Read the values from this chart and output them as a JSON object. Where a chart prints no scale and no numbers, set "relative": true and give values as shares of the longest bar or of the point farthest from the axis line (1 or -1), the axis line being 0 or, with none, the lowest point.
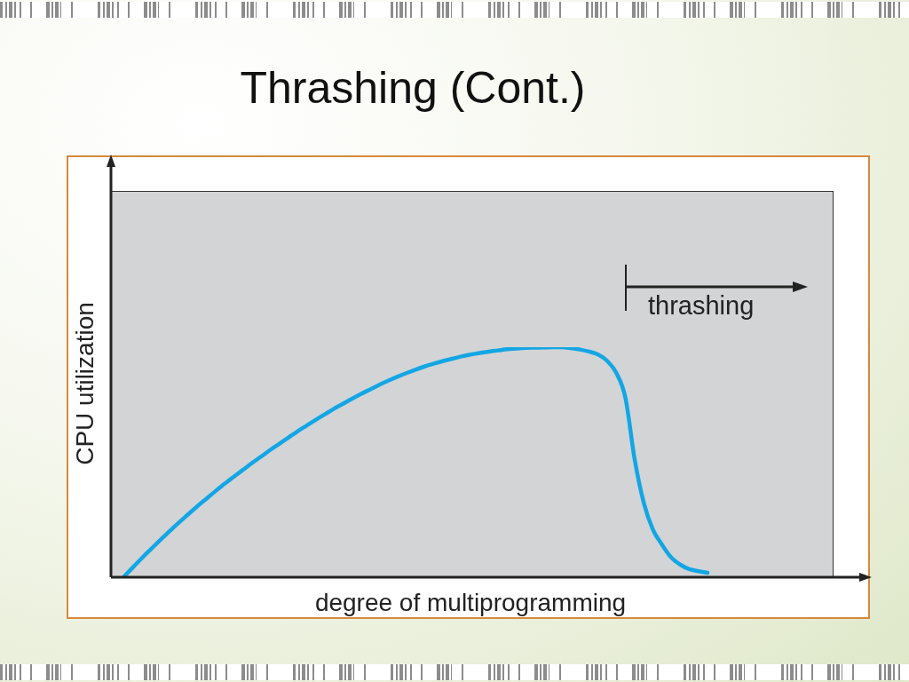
{
  "chart_data": {
    "type": "line",
    "title": "Thrashing (Cont.)",
    "xlabel": "degree of multiprogramming",
    "ylabel": "CPU utilization",
    "annotations": [
      "thrashing"
    ],
    "relative": true,
    "categories": [
      null,
      null,
      null,
      null,
      null,
      null,
      null,
      null,
      null,
      null,
      null,
      null,
      null,
      null,
      null,
      null,
      null,
      null,
      null,
      null,
      null,
      null,
      null,
      null,
      null,
      null,
      null,
      null,
      null,
      null,
      null,
      null,
      null,
      null,
      null,
      null,
      null,
      null,
      null,
      null,
      null,
      null,
      null,
      null,
      null,
      null,
      null,
      null,
      null,
      null,
      null,
      null,
      null,
      null,
      null,
      null,
      null,
      null,
      null,
      null,
      null,
      null,
      null,
      null,
      null
    ],
    "series": [
      {
        "color": "#13a6e4",
        "values": [
          0.004,
          0.045,
          0.086,
          0.125,
          0.164,
          0.201,
          0.238,
          0.273,
          0.308,
          0.341,
          0.374,
          0.406,
          0.436,
          0.466,
          0.496,
          0.524,
          0.553,
          0.58,
          0.607,
          0.634,
          0.659,
          0.684,
          0.708,
          0.732,
          0.754,
          0.776,
          0.797,
          0.817,
          0.837,
          0.855,
          0.872,
          0.888,
          0.903,
          0.917,
          0.929,
          0.94,
          0.95,
          0.96,
          0.968,
          0.975,
          0.981,
          0.986,
          0.991,
          0.994,
          0.997,
          0.998,
          0.999,
          1.0,
          1.0,
          0.996,
          0.99,
          0.981,
          0.968,
          0.94,
          0.888,
          0.779,
          0.514,
          0.325,
          0.208,
          0.142,
          0.087,
          0.055,
          0.035,
          0.026,
          0.019
        ]
      }
    ]
  }
}
